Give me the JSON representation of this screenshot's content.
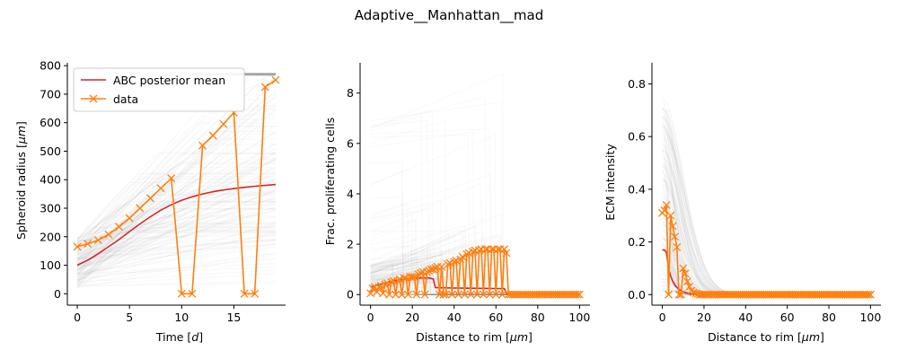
{
  "figure": {
    "title": "Adaptive__Manhattan__mad"
  },
  "colors": {
    "posterior_mean": "#d62728",
    "data": "#ff7f0e",
    "samples": "#808080"
  },
  "legend": {
    "placement": "upper-left",
    "entries": [
      "ABC posterior mean",
      "data"
    ]
  },
  "chart_data": [
    {
      "type": "line",
      "xlabel_prefix": "Time [",
      "xlabel_unit": "d",
      "xlabel_suffix": "]",
      "ylabel_prefix": "Spheroid radius [",
      "ylabel_unit": "μm",
      "ylabel_suffix": "]",
      "xlim": [
        -0.95,
        19.95
      ],
      "ylim": [
        -40,
        810
      ],
      "xticks": [
        0,
        5,
        10,
        15
      ],
      "yticks": [
        0,
        100,
        200,
        300,
        400,
        500,
        600,
        700,
        800
      ],
      "grid": false,
      "series": [
        {
          "name": "ABC posterior mean",
          "x": [
            0,
            1,
            2,
            3,
            4,
            5,
            6,
            7,
            8,
            9,
            10,
            11,
            12,
            13,
            14,
            15,
            16,
            17,
            18,
            19
          ],
          "y": [
            100,
            118,
            140,
            165,
            190,
            218,
            245,
            270,
            293,
            312,
            328,
            340,
            350,
            358,
            364,
            369,
            373,
            377,
            380,
            383
          ]
        },
        {
          "name": "data",
          "x": [
            0,
            1,
            2,
            3,
            4,
            5,
            6,
            7,
            8,
            9,
            10,
            11,
            12,
            13,
            14,
            15,
            16,
            17,
            18,
            19
          ],
          "y": [
            165,
            175,
            188,
            208,
            235,
            265,
            300,
            335,
            370,
            405,
            0,
            0,
            520,
            555,
            595,
            635,
            0,
            0,
            725,
            750
          ]
        }
      ]
    },
    {
      "type": "line",
      "xlabel_prefix": "Distance to rim [",
      "xlabel_unit": "μm",
      "xlabel_suffix": "]",
      "ylabel": "Frac. proliferating cells",
      "xlim": [
        -5,
        105
      ],
      "ylim": [
        -0.42,
        9.2
      ],
      "xticks": [
        0,
        20,
        40,
        60,
        80,
        100
      ],
      "yticks": [
        0,
        2,
        4,
        6,
        8
      ],
      "grid": false,
      "series": [
        {
          "name": "ABC posterior mean",
          "x": [
            0,
            5,
            10,
            15,
            20,
            25,
            28,
            30,
            31,
            40,
            50,
            60,
            64,
            65,
            66,
            70,
            80,
            90,
            100
          ],
          "y": [
            0.3,
            0.42,
            0.52,
            0.6,
            0.65,
            0.66,
            0.66,
            0.62,
            0.28,
            0.26,
            0.25,
            0.24,
            0.24,
            0.05,
            0.0,
            0.0,
            0.0,
            0.0,
            0.0
          ]
        },
        {
          "name": "data",
          "x": [
            0,
            1,
            2,
            3,
            4,
            5,
            6,
            7,
            8,
            9,
            10,
            11,
            12,
            13,
            14,
            15,
            16,
            17,
            18,
            19,
            20,
            21,
            22,
            23,
            24,
            25,
            26,
            27,
            28,
            29,
            30,
            31,
            32,
            33,
            34,
            35,
            36,
            37,
            38,
            39,
            40,
            41,
            42,
            43,
            44,
            45,
            46,
            47,
            48,
            49,
            50,
            51,
            52,
            53,
            54,
            55,
            56,
            57,
            58,
            59,
            60,
            61,
            62,
            63,
            64,
            65,
            66,
            67,
            68,
            69,
            70,
            71,
            72,
            73,
            74,
            75,
            76,
            77,
            78,
            79,
            80,
            81,
            82,
            83,
            84,
            85,
            86,
            87,
            88,
            89,
            90,
            91,
            92,
            93,
            94,
            95,
            96,
            97,
            98,
            99,
            100
          ],
          "y": [
            0.05,
            0.25,
            0.3,
            0.1,
            0.3,
            0.35,
            0.05,
            0.4,
            0.45,
            0.0,
            0.5,
            0.55,
            0.0,
            0.55,
            0.6,
            0.0,
            0.65,
            0.65,
            0.0,
            0.7,
            0.7,
            0.7,
            0.0,
            0.8,
            0.85,
            0.9,
            0.0,
            0.9,
            0.95,
            1.0,
            1.0,
            1.05,
            1.1,
            0.0,
            1.1,
            0.0,
            0.0,
            1.2,
            1.25,
            0.0,
            1.3,
            1.35,
            0.0,
            1.4,
            1.5,
            0.0,
            1.6,
            1.65,
            0.0,
            1.7,
            1.75,
            0.0,
            1.75,
            1.8,
            0.0,
            1.8,
            1.8,
            0.0,
            1.8,
            1.8,
            0.0,
            1.8,
            1.8,
            0.0,
            1.8,
            1.65,
            0.0,
            0.0,
            0.0,
            0.0,
            0.0,
            0.0,
            0.0,
            0.0,
            0.0,
            0.0,
            0.0,
            0.0,
            0.0,
            0.0,
            0.0,
            0.0,
            0.0,
            0.0,
            0.0,
            0.0,
            0.0,
            0.0,
            0.0,
            0.0,
            0.0,
            0.0,
            0.0,
            0.0,
            0.0,
            0.0,
            0.0,
            0.0,
            0.0,
            0.0,
            0.0
          ]
        }
      ]
    },
    {
      "type": "line",
      "xlabel_prefix": "Distance to rim [",
      "xlabel_unit": "μm",
      "xlabel_suffix": "]",
      "ylabel": "ECM intensity",
      "xlim": [
        -5,
        105
      ],
      "ylim": [
        -0.04,
        0.88
      ],
      "xticks": [
        0,
        20,
        40,
        60,
        80,
        100
      ],
      "yticks": [
        0.0,
        0.2,
        0.4,
        0.6,
        0.8
      ],
      "grid": false,
      "series": [
        {
          "name": "ABC posterior mean",
          "x": [
            0,
            1,
            2,
            3,
            4,
            5,
            6,
            8,
            10,
            12,
            14,
            16,
            20,
            30,
            40,
            50,
            60,
            70,
            80,
            90,
            100
          ],
          "y": [
            0.17,
            0.17,
            0.16,
            0.1,
            0.07,
            0.05,
            0.035,
            0.02,
            0.01,
            0.006,
            0.003,
            0.002,
            0.0,
            0.0,
            0.0,
            0.0,
            0.0,
            0.0,
            0.0,
            0.0,
            0.0
          ]
        },
        {
          "name": "data",
          "x": [
            0,
            1,
            2,
            3,
            4,
            5,
            6,
            7,
            8,
            9,
            10,
            11,
            12,
            13,
            14,
            15,
            16,
            17,
            18,
            19,
            20,
            21,
            22,
            23,
            24,
            25,
            26,
            27,
            28,
            29,
            30,
            31,
            32,
            33,
            34,
            35,
            36,
            37,
            38,
            39,
            40,
            41,
            42,
            43,
            44,
            45,
            46,
            47,
            48,
            49,
            50,
            51,
            52,
            53,
            54,
            55,
            56,
            57,
            58,
            59,
            60,
            61,
            62,
            63,
            64,
            65,
            66,
            67,
            68,
            69,
            70,
            71,
            72,
            73,
            74,
            75,
            76,
            77,
            78,
            79,
            80,
            81,
            82,
            83,
            84,
            85,
            86,
            87,
            88,
            89,
            90,
            91,
            92,
            93,
            94,
            95,
            96,
            97,
            98,
            99,
            100
          ],
          "y": [
            0.31,
            0.32,
            0.34,
            0.0,
            0.3,
            0.26,
            0.22,
            0.18,
            0.0,
            0.0,
            0.1,
            0.08,
            0.05,
            0.03,
            0.015,
            0.008,
            0.004,
            0.002,
            0.0,
            0.0,
            0.0,
            0.0,
            0.0,
            0.0,
            0.0,
            0.0,
            0.0,
            0.0,
            0.0,
            0.0,
            0.0,
            0.0,
            0.0,
            0.0,
            0.0,
            0.0,
            0.0,
            0.0,
            0.0,
            0.0,
            0.0,
            0.0,
            0.0,
            0.0,
            0.0,
            0.0,
            0.0,
            0.0,
            0.0,
            0.0,
            0.0,
            0.0,
            0.0,
            0.0,
            0.0,
            0.0,
            0.0,
            0.0,
            0.0,
            0.0,
            0.0,
            0.0,
            0.0,
            0.0,
            0.0,
            0.0,
            0.0,
            0.0,
            0.0,
            0.0,
            0.0,
            0.0,
            0.0,
            0.0,
            0.0,
            0.0,
            0.0,
            0.0,
            0.0,
            0.0,
            0.0,
            0.0,
            0.0,
            0.0,
            0.0,
            0.0,
            0.0,
            0.0,
            0.0,
            0.0,
            0.0,
            0.0,
            0.0,
            0.0,
            0.0,
            0.0,
            0.0,
            0.0,
            0.0,
            0.0,
            0.0
          ]
        }
      ]
    }
  ]
}
